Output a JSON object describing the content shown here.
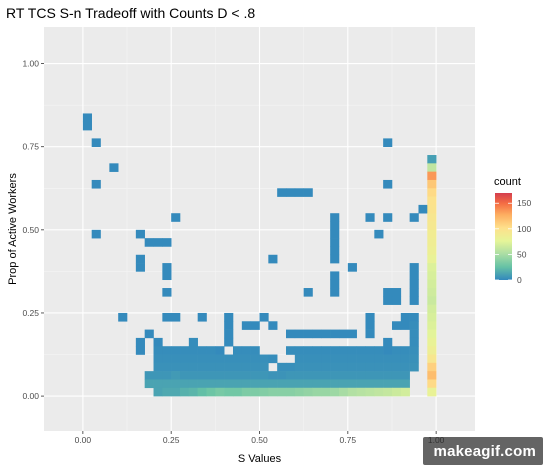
{
  "chart_data": {
    "type": "heatmap",
    "title": "RT TCS S-n Tradeoff with Counts D < .8",
    "xlabel": "S Values",
    "ylabel": "Prop of Active Workers",
    "xlim": [
      -0.11,
      1.11
    ],
    "ylim": [
      -0.105,
      1.11
    ],
    "x_ticks": [
      "0.00",
      "0.25",
      "0.50",
      "0.75",
      "1.00"
    ],
    "y_ticks": [
      "0.00",
      "0.25",
      "0.50",
      "0.75",
      "1.00"
    ],
    "bin_width": 0.025,
    "bin_height": 0.025,
    "grid": true,
    "legend": {
      "title": "count",
      "position": "right",
      "labels": [
        "0",
        "50",
        "100",
        "150"
      ],
      "range": [
        0,
        170
      ]
    },
    "cells": [
      [
        0.0125,
        0.8375,
        1
      ],
      [
        0.0125,
        0.8125,
        1
      ],
      [
        0.0375,
        0.7625,
        1
      ],
      [
        0.0875,
        0.6875,
        1
      ],
      [
        0.0375,
        0.6375,
        1
      ],
      [
        0.0375,
        0.4875,
        1
      ],
      [
        0.1125,
        0.2375,
        1
      ],
      [
        0.1625,
        0.4875,
        1
      ],
      [
        0.1875,
        0.4625,
        1
      ],
      [
        0.2125,
        0.4625,
        1
      ],
      [
        0.2375,
        0.4625,
        1
      ],
      [
        0.1625,
        0.4125,
        1
      ],
      [
        0.1625,
        0.3875,
        1
      ],
      [
        0.2375,
        0.3875,
        1
      ],
      [
        0.2375,
        0.3625,
        1
      ],
      [
        0.2375,
        0.3125,
        1
      ],
      [
        0.2375,
        0.2375,
        1
      ],
      [
        0.2625,
        0.2375,
        1
      ],
      [
        0.2625,
        0.5375,
        1
      ],
      [
        0.3375,
        0.2375,
        1
      ],
      [
        0.5375,
        0.4125,
        1
      ],
      [
        0.5625,
        0.6125,
        1
      ],
      [
        0.5875,
        0.6125,
        1
      ],
      [
        0.6125,
        0.6125,
        1
      ],
      [
        0.6375,
        0.6125,
        1
      ],
      [
        0.6375,
        0.3125,
        1
      ],
      [
        0.7125,
        0.5375,
        1
      ],
      [
        0.7125,
        0.5125,
        1
      ],
      [
        0.7125,
        0.4875,
        1
      ],
      [
        0.7125,
        0.4625,
        1
      ],
      [
        0.7125,
        0.4375,
        1
      ],
      [
        0.7125,
        0.4125,
        1
      ],
      [
        0.7125,
        0.3625,
        1
      ],
      [
        0.7125,
        0.3375,
        1
      ],
      [
        0.7125,
        0.3125,
        1
      ],
      [
        0.7625,
        0.3875,
        1
      ],
      [
        0.8125,
        0.5375,
        1
      ],
      [
        0.8375,
        0.4875,
        1
      ],
      [
        0.8625,
        0.7625,
        1
      ],
      [
        0.8625,
        0.6375,
        1
      ],
      [
        0.8625,
        0.5375,
        1
      ],
      [
        0.8625,
        0.3125,
        1
      ],
      [
        0.8875,
        0.3125,
        1
      ],
      [
        0.8625,
        0.2875,
        1
      ],
      [
        0.8875,
        0.2875,
        1
      ],
      [
        0.8125,
        0.2375,
        1
      ],
      [
        0.8125,
        0.2125,
        1
      ],
      [
        0.8125,
        0.1875,
        1
      ],
      [
        0.9375,
        0.5375,
        1
      ],
      [
        0.9625,
        0.5625,
        1
      ],
      [
        0.4125,
        0.2375,
        1
      ],
      [
        0.4125,
        0.2125,
        1
      ],
      [
        0.4125,
        0.1875,
        1
      ],
      [
        0.4125,
        0.1625,
        1
      ],
      [
        0.3875,
        0.1375,
        1
      ],
      [
        0.4625,
        0.2125,
        1
      ],
      [
        0.4875,
        0.2125,
        1
      ],
      [
        0.5125,
        0.2375,
        1
      ],
      [
        0.5375,
        0.2125,
        1
      ],
      [
        0.5875,
        0.1875,
        1
      ],
      [
        0.6125,
        0.1875,
        1
      ],
      [
        0.6375,
        0.1875,
        1
      ],
      [
        0.6625,
        0.1875,
        1
      ],
      [
        0.6875,
        0.1875,
        1
      ],
      [
        0.7125,
        0.1875,
        1
      ],
      [
        0.7375,
        0.1875,
        1
      ],
      [
        0.7625,
        0.1875,
        1
      ],
      [
        0.8625,
        0.1625,
        1
      ],
      [
        0.8625,
        0.1375,
        1
      ],
      [
        0.8875,
        0.2125,
        1
      ],
      [
        0.9125,
        0.2125,
        1
      ],
      [
        0.9125,
        0.2375,
        1
      ],
      [
        0.9375,
        0.2875,
        1
      ],
      [
        0.9375,
        0.3875,
        1
      ],
      [
        0.9375,
        0.3625,
        1
      ],
      [
        0.9375,
        0.3375,
        1
      ],
      [
        0.9375,
        0.3125,
        1
      ],
      [
        0.3125,
        0.1625,
        2
      ],
      [
        0.3125,
        0.1375,
        2
      ],
      [
        0.2125,
        0.1625,
        1
      ],
      [
        0.1625,
        0.1625,
        1
      ],
      [
        0.1625,
        0.1375,
        1
      ],
      [
        0.1875,
        0.1875,
        1
      ],
      [
        0.2125,
        0.1375,
        2
      ],
      [
        0.2375,
        0.1375,
        2
      ],
      [
        0.2625,
        0.1375,
        2
      ],
      [
        0.2875,
        0.1375,
        2
      ],
      [
        0.3375,
        0.1375,
        2
      ],
      [
        0.3625,
        0.1375,
        2
      ],
      [
        0.4375,
        0.1375,
        2
      ],
      [
        0.4625,
        0.1375,
        2
      ],
      [
        0.4875,
        0.1375,
        2
      ],
      [
        0.5875,
        0.1375,
        2
      ],
      [
        0.6125,
        0.1375,
        2
      ],
      [
        0.6375,
        0.1375,
        2
      ],
      [
        0.6625,
        0.1375,
        2
      ],
      [
        0.6875,
        0.1375,
        2
      ],
      [
        0.7125,
        0.1375,
        2
      ],
      [
        0.7375,
        0.1375,
        2
      ],
      [
        0.7625,
        0.1375,
        2
      ],
      [
        0.7875,
        0.1375,
        2
      ],
      [
        0.8125,
        0.1375,
        2
      ],
      [
        0.8375,
        0.1375,
        2
      ],
      [
        0.8875,
        0.1375,
        2
      ],
      [
        0.9125,
        0.1375,
        2
      ],
      [
        0.9375,
        0.2375,
        1
      ],
      [
        0.9375,
        0.2125,
        2
      ],
      [
        0.9375,
        0.1875,
        2
      ],
      [
        0.9375,
        0.1625,
        2
      ],
      [
        0.9375,
        0.1375,
        3
      ],
      [
        0.2125,
        0.1125,
        3
      ],
      [
        0.2375,
        0.1125,
        3
      ],
      [
        0.2625,
        0.1125,
        3
      ],
      [
        0.2875,
        0.1125,
        3
      ],
      [
        0.3125,
        0.1125,
        3
      ],
      [
        0.3375,
        0.1125,
        3
      ],
      [
        0.3625,
        0.1125,
        3
      ],
      [
        0.3875,
        0.1125,
        3
      ],
      [
        0.4125,
        0.1125,
        3
      ],
      [
        0.4375,
        0.1125,
        3
      ],
      [
        0.4625,
        0.1125,
        3
      ],
      [
        0.4875,
        0.1125,
        3
      ],
      [
        0.5125,
        0.1125,
        3
      ],
      [
        0.5375,
        0.1125,
        2
      ],
      [
        0.6125,
        0.1125,
        3
      ],
      [
        0.6375,
        0.1125,
        3
      ],
      [
        0.6625,
        0.1125,
        3
      ],
      [
        0.6875,
        0.1125,
        3
      ],
      [
        0.7125,
        0.1125,
        3
      ],
      [
        0.7375,
        0.1125,
        3
      ],
      [
        0.7625,
        0.1125,
        3
      ],
      [
        0.7875,
        0.1125,
        3
      ],
      [
        0.8125,
        0.1125,
        3
      ],
      [
        0.8375,
        0.1125,
        3
      ],
      [
        0.8625,
        0.1125,
        3
      ],
      [
        0.8875,
        0.1125,
        3
      ],
      [
        0.9125,
        0.1125,
        3
      ],
      [
        0.9375,
        0.1125,
        4
      ],
      [
        0.2125,
        0.0875,
        4
      ],
      [
        0.2375,
        0.0875,
        4
      ],
      [
        0.2625,
        0.0875,
        4
      ],
      [
        0.2875,
        0.0875,
        4
      ],
      [
        0.3125,
        0.0875,
        4
      ],
      [
        0.3375,
        0.0875,
        4
      ],
      [
        0.3625,
        0.0875,
        4
      ],
      [
        0.3875,
        0.0875,
        4
      ],
      [
        0.4125,
        0.0875,
        4
      ],
      [
        0.4375,
        0.0875,
        4
      ],
      [
        0.4625,
        0.0875,
        4
      ],
      [
        0.4875,
        0.0875,
        4
      ],
      [
        0.5125,
        0.0875,
        4
      ],
      [
        0.5625,
        0.0875,
        3
      ],
      [
        0.5875,
        0.0875,
        3
      ],
      [
        0.6125,
        0.0875,
        4
      ],
      [
        0.6375,
        0.0875,
        4
      ],
      [
        0.6625,
        0.0875,
        4
      ],
      [
        0.6875,
        0.0875,
        4
      ],
      [
        0.7125,
        0.0875,
        4
      ],
      [
        0.7375,
        0.0875,
        4
      ],
      [
        0.7625,
        0.0875,
        4
      ],
      [
        0.7875,
        0.0875,
        4
      ],
      [
        0.8125,
        0.0875,
        4
      ],
      [
        0.8375,
        0.0875,
        4
      ],
      [
        0.8625,
        0.0875,
        4
      ],
      [
        0.8875,
        0.0875,
        4
      ],
      [
        0.9125,
        0.0875,
        4
      ],
      [
        0.9375,
        0.0875,
        5
      ],
      [
        0.1875,
        0.0625,
        6
      ],
      [
        0.2125,
        0.0625,
        6
      ],
      [
        0.2375,
        0.0625,
        6
      ],
      [
        0.2625,
        0.0625,
        8
      ],
      [
        0.2875,
        0.0625,
        6
      ],
      [
        0.3125,
        0.0625,
        6
      ],
      [
        0.3375,
        0.0625,
        6
      ],
      [
        0.3625,
        0.0625,
        6
      ],
      [
        0.3875,
        0.0625,
        6
      ],
      [
        0.4125,
        0.0625,
        6
      ],
      [
        0.4375,
        0.0625,
        6
      ],
      [
        0.4625,
        0.0625,
        6
      ],
      [
        0.4875,
        0.0625,
        6
      ],
      [
        0.5125,
        0.0625,
        6
      ],
      [
        0.5375,
        0.0625,
        5
      ],
      [
        0.5625,
        0.0625,
        5
      ],
      [
        0.5875,
        0.0625,
        6
      ],
      [
        0.6125,
        0.0625,
        6
      ],
      [
        0.6375,
        0.0625,
        6
      ],
      [
        0.6625,
        0.0625,
        6
      ],
      [
        0.6875,
        0.0625,
        6
      ],
      [
        0.7125,
        0.0625,
        6
      ],
      [
        0.7375,
        0.0625,
        6
      ],
      [
        0.7625,
        0.0625,
        6
      ],
      [
        0.7875,
        0.0625,
        6
      ],
      [
        0.8125,
        0.0625,
        6
      ],
      [
        0.8375,
        0.0625,
        6
      ],
      [
        0.8625,
        0.0625,
        6
      ],
      [
        0.8875,
        0.0625,
        6
      ],
      [
        0.9125,
        0.0625,
        6
      ],
      [
        0.1875,
        0.0375,
        12
      ],
      [
        0.2125,
        0.0375,
        12
      ],
      [
        0.2375,
        0.0375,
        12
      ],
      [
        0.2625,
        0.0375,
        12
      ],
      [
        0.2875,
        0.0375,
        12
      ],
      [
        0.3125,
        0.0375,
        12
      ],
      [
        0.3375,
        0.0375,
        12
      ],
      [
        0.3625,
        0.0375,
        12
      ],
      [
        0.3875,
        0.0375,
        12
      ],
      [
        0.4125,
        0.0375,
        12
      ],
      [
        0.4375,
        0.0375,
        12
      ],
      [
        0.4625,
        0.0375,
        12
      ],
      [
        0.4875,
        0.0375,
        12
      ],
      [
        0.5125,
        0.0375,
        12
      ],
      [
        0.5375,
        0.0375,
        12
      ],
      [
        0.5625,
        0.0375,
        12
      ],
      [
        0.5875,
        0.0375,
        12
      ],
      [
        0.6125,
        0.0375,
        12
      ],
      [
        0.6375,
        0.0375,
        12
      ],
      [
        0.6625,
        0.0375,
        12
      ],
      [
        0.6875,
        0.0375,
        12
      ],
      [
        0.7125,
        0.0375,
        12
      ],
      [
        0.7375,
        0.0375,
        12
      ],
      [
        0.7625,
        0.0375,
        12
      ],
      [
        0.7875,
        0.0375,
        12
      ],
      [
        0.8125,
        0.0375,
        12
      ],
      [
        0.8375,
        0.0375,
        12
      ],
      [
        0.8625,
        0.0375,
        12
      ],
      [
        0.8875,
        0.0375,
        12
      ],
      [
        0.9125,
        0.0375,
        12
      ],
      [
        0.2125,
        0.0125,
        12
      ],
      [
        0.2375,
        0.0125,
        14
      ],
      [
        0.2625,
        0.0125,
        14
      ],
      [
        0.2875,
        0.0125,
        18
      ],
      [
        0.3125,
        0.0125,
        20
      ],
      [
        0.3375,
        0.0125,
        24
      ],
      [
        0.3625,
        0.0125,
        28
      ],
      [
        0.3875,
        0.0125,
        32
      ],
      [
        0.4125,
        0.0125,
        30
      ],
      [
        0.4375,
        0.0125,
        30
      ],
      [
        0.4625,
        0.0125,
        34
      ],
      [
        0.4875,
        0.0125,
        34
      ],
      [
        0.5125,
        0.0125,
        36
      ],
      [
        0.5375,
        0.0125,
        38
      ],
      [
        0.5625,
        0.0125,
        38
      ],
      [
        0.5875,
        0.0125,
        38
      ],
      [
        0.6125,
        0.0125,
        40
      ],
      [
        0.6375,
        0.0125,
        42
      ],
      [
        0.6625,
        0.0125,
        44
      ],
      [
        0.6875,
        0.0125,
        44
      ],
      [
        0.7125,
        0.0125,
        46
      ],
      [
        0.7375,
        0.0125,
        50
      ],
      [
        0.7625,
        0.0125,
        54
      ],
      [
        0.7875,
        0.0125,
        56
      ],
      [
        0.8125,
        0.0125,
        58
      ],
      [
        0.8375,
        0.0125,
        60
      ],
      [
        0.8625,
        0.0125,
        62
      ],
      [
        0.8875,
        0.0125,
        65
      ],
      [
        0.9125,
        0.0125,
        68
      ],
      [
        0.9875,
        0.7125,
        10
      ],
      [
        0.9875,
        0.6875,
        60
      ],
      [
        0.9875,
        0.6625,
        135
      ],
      [
        0.9875,
        0.6375,
        115
      ],
      [
        0.9875,
        0.6125,
        105
      ],
      [
        0.9875,
        0.5875,
        100
      ],
      [
        0.9875,
        0.5625,
        98
      ],
      [
        0.9875,
        0.5375,
        95
      ],
      [
        0.9875,
        0.5125,
        92
      ],
      [
        0.9875,
        0.4875,
        88
      ],
      [
        0.9875,
        0.4625,
        86
      ],
      [
        0.9875,
        0.4375,
        84
      ],
      [
        0.9875,
        0.4125,
        80
      ],
      [
        0.9875,
        0.3875,
        72
      ],
      [
        0.9875,
        0.3625,
        70
      ],
      [
        0.9875,
        0.3375,
        68
      ],
      [
        0.9875,
        0.3125,
        66
      ],
      [
        0.9875,
        0.2875,
        64
      ],
      [
        0.9875,
        0.2625,
        68
      ],
      [
        0.9875,
        0.2375,
        70
      ],
      [
        0.9875,
        0.2125,
        72
      ],
      [
        0.9875,
        0.1875,
        75
      ],
      [
        0.9875,
        0.1625,
        80
      ],
      [
        0.9875,
        0.1375,
        85
      ],
      [
        0.9875,
        0.1125,
        95
      ],
      [
        0.9875,
        0.0875,
        110
      ],
      [
        0.9875,
        0.0625,
        120
      ],
      [
        0.9875,
        0.0375,
        105
      ],
      [
        0.9875,
        0.0125,
        80
      ]
    ]
  },
  "watermark": "makeagif.com",
  "colors": {
    "panel_bg": "#ebebeb",
    "grid_major": "#ffffff",
    "scale": [
      "#3288bd",
      "#66c2a5",
      "#abdda4",
      "#e6f598",
      "#fee08b",
      "#fdae61",
      "#f46d43",
      "#d53e4f"
    ]
  }
}
